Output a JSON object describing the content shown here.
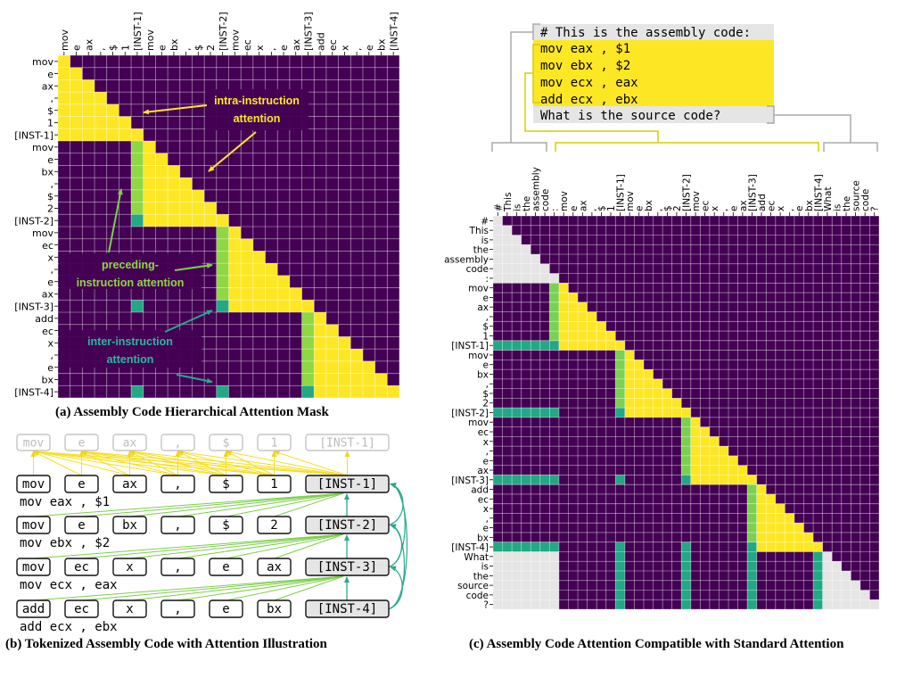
{
  "colors": {
    "masked": "#440154",
    "intra": "#fde725",
    "preceding": "#8fd744",
    "inter": "#22a884",
    "prompt": "#e5e5e5",
    "ghost": "#bbbbbb"
  },
  "panel_a": {
    "caption": "(a) Assembly Code Hierarchical Attention Mask",
    "tokens": [
      "mov",
      "e",
      "ax",
      ",",
      "$",
      "1",
      "[INST-1]",
      "mov",
      "e",
      "bx",
      ",",
      "$",
      "2",
      "[INST-2]",
      "mov",
      "ec",
      "x",
      ",",
      "e",
      "ax",
      "[INST-3]",
      "add",
      "ec",
      "x",
      ",",
      "e",
      "bx",
      "[INST-4]"
    ],
    "annotations": {
      "intra": [
        "intra-instruction",
        "attention"
      ],
      "preceding": [
        "preceding-",
        "instruction attention"
      ],
      "inter": [
        "inter-instruction",
        "attention"
      ]
    }
  },
  "panel_b": {
    "caption": "(b) Tokenized Assembly Code with Attention Illustration",
    "ghost_row": [
      "mov",
      "e",
      "ax",
      ",",
      "$",
      "1",
      "[INST-1]"
    ],
    "rows": [
      {
        "tokens": [
          "mov",
          "e",
          "ax",
          ",",
          "$",
          "1",
          "[INST-1]"
        ],
        "code": "mov eax , $1"
      },
      {
        "tokens": [
          "mov",
          "e",
          "bx",
          ",",
          "$",
          "2",
          "[INST-2]"
        ],
        "code": "mov ebx , $2"
      },
      {
        "tokens": [
          "mov",
          "ec",
          "x",
          ",",
          "e",
          "ax",
          "[INST-3]"
        ],
        "code": "mov ecx , eax"
      },
      {
        "tokens": [
          "add",
          "ec",
          "x",
          ",",
          "e",
          "bx",
          "[INST-4]"
        ],
        "code": "add ecx , ebx"
      }
    ]
  },
  "panel_c": {
    "caption": "(c) Assembly Code Attention Compatible with Standard Attention",
    "code_box": {
      "header": "# This is the assembly code:",
      "lines": [
        "mov eax , $1",
        "mov ebx , $2",
        "mov ecx , eax",
        "add ecx , ebx"
      ],
      "question": "What is the source code?"
    },
    "prefix_tokens": [
      "#",
      "This",
      "is",
      "the",
      "assembly",
      "code",
      ":"
    ],
    "suffix_tokens": [
      "What",
      "is",
      "the",
      "source",
      "code",
      "?"
    ]
  }
}
